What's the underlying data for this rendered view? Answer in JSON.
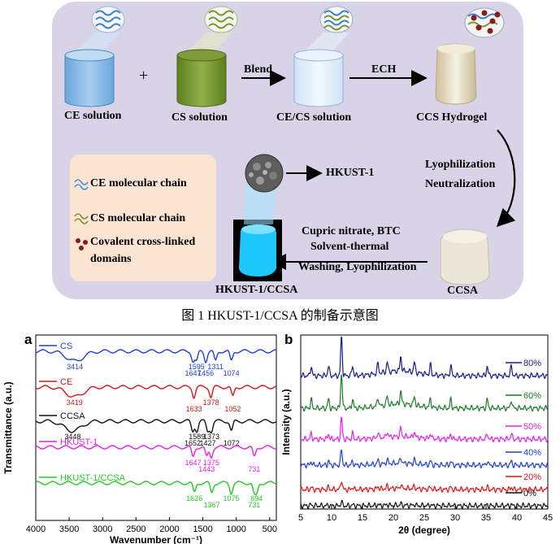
{
  "scheme": {
    "ce_solution": "CE solution",
    "plus": "+",
    "cs_solution": "CS solution",
    "blend": "Blend",
    "ce_cs_solution": "CE/CS solution",
    "ech": "ECH",
    "ccs_hydrogel": "CCS Hydrogel",
    "lyophilization": "Lyophilization",
    "neutralization": "Neutralization",
    "hkust1": "HKUST-1",
    "step_line1": "Cupric nitrate, BTC",
    "step_line2": "Solvent-thermal",
    "step_line3": "Washing, Lyophilization",
    "ccsa": "CCSA",
    "hkust1_ccsa": "HKUST-1/CCSA",
    "legend": {
      "ce_chain": "CE molecular chain",
      "cs_chain": "CS molecular chain",
      "crosslink_line1": "Covalent cross-linked",
      "crosslink_line2": "domains"
    },
    "colors": {
      "background": "#d9d3e8",
      "legend_bg": "#fbe4d2",
      "ce": "#4a90d9",
      "cs": "#6b8a2a",
      "crosslink": "#8b1a1a",
      "hkust": "#1ec8ff"
    }
  },
  "caption": "图 1 HKUST-1/CCSA 的制备示意图",
  "chart_data": [
    {
      "panel": "a",
      "type": "line",
      "xlabel": "Wavenumber (cm⁻¹)",
      "ylabel": "Transmittance (a.u.)",
      "xlim": [
        4000,
        400
      ],
      "x_ticks": [
        "4000",
        "3500",
        "3000",
        "2500",
        "2000",
        "1500",
        "1000",
        "500"
      ],
      "series": [
        {
          "name": "CS",
          "color": "#1f3fd6",
          "peaks": [
            "3414",
            "1647",
            "1595",
            "1456",
            "1311",
            "1074"
          ]
        },
        {
          "name": "CE",
          "color": "#e01414",
          "peaks": [
            "3419",
            "1633",
            "1378",
            "1052"
          ]
        },
        {
          "name": "CCSA",
          "color": "#111111",
          "peaks": [
            "3448",
            "1652",
            "1589",
            "1427",
            "1373",
            "1072"
          ]
        },
        {
          "name": "HKUST-1",
          "color": "#e81ee8",
          "peaks": [
            "1647",
            "1443",
            "1375",
            "731"
          ]
        },
        {
          "name": "HKUST-1/CCSA",
          "color": "#22cc22",
          "peaks": [
            "1626",
            "1367",
            "1075",
            "731",
            "694"
          ]
        }
      ]
    },
    {
      "panel": "b",
      "type": "line",
      "xlabel": "2θ (degree)",
      "ylabel": "Intensity (a.u.)",
      "xlim": [
        5,
        45
      ],
      "x_ticks": [
        "5",
        "10",
        "15",
        "20",
        "25",
        "30",
        "35",
        "40",
        "45"
      ],
      "series": [
        {
          "name": "80%",
          "color": "#1a1a8c"
        },
        {
          "name": "60%",
          "color": "#1f7a2a"
        },
        {
          "name": "50%",
          "color": "#e81ee8"
        },
        {
          "name": "40%",
          "color": "#1f3fd6"
        },
        {
          "name": "20%",
          "color": "#e01414"
        },
        {
          "name": "0%",
          "color": "#111111"
        }
      ],
      "peak_positions": [
        6.7,
        9.5,
        11.6,
        13.4,
        17.5,
        19.0,
        21.2,
        23.4,
        26.0,
        29.3,
        35.2,
        39.1
      ]
    }
  ]
}
